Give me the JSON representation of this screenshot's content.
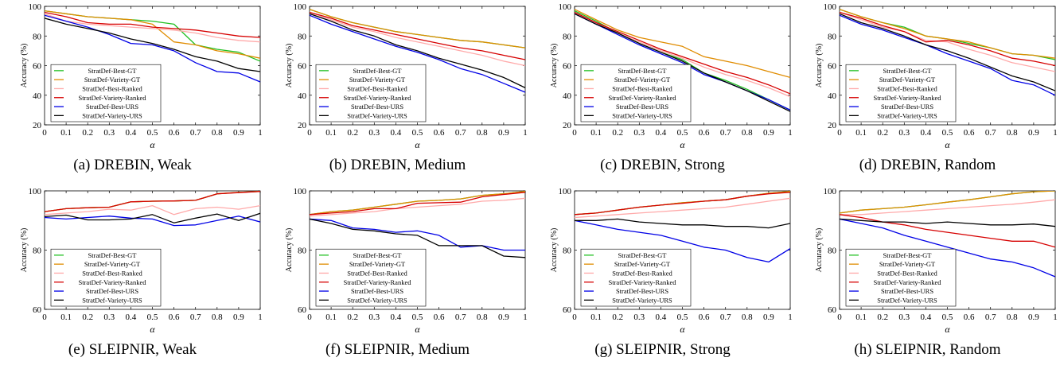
{
  "legend_labels": [
    "StratDef-Best-GT",
    "StratDef-Variety-GT",
    "StratDef-Best-Ranked",
    "StratDef-Variety-Ranked",
    "StratDef-Best-URS",
    "StratDef-Variety-URS"
  ],
  "series_colors": [
    "#22c022",
    "#e08c00",
    "#ffaaaa",
    "#d60000",
    "#0000e6",
    "#000000"
  ],
  "chart_data": [
    {
      "type": "line",
      "caption": "(a) DREBIN, Weak",
      "xlabel": "α",
      "ylabel": "Accuracy (%)",
      "xlim": [
        0,
        1
      ],
      "ylim": [
        20,
        100
      ],
      "xticks": [
        "0",
        "0.1",
        "0.2",
        "0.3",
        "0.4",
        "0.5",
        "0.6",
        "0.7",
        "0.8",
        "0.9",
        "1"
      ],
      "yticks": [
        "20",
        "40",
        "60",
        "80",
        "100"
      ],
      "x": [
        0,
        0.1,
        0.2,
        0.3,
        0.4,
        0.5,
        0.6,
        0.7,
        0.8,
        0.9,
        1
      ],
      "legend_position": "bottom-left",
      "series": [
        {
          "name": "StratDef-Best-GT",
          "values": [
            97,
            95,
            93,
            92,
            91,
            90,
            88,
            74,
            71,
            69,
            63
          ]
        },
        {
          "name": "StratDef-Variety-GT",
          "values": [
            97,
            95,
            93,
            92,
            91,
            88,
            76,
            74,
            70,
            68,
            65
          ]
        },
        {
          "name": "StratDef-Best-Ranked",
          "values": [
            95,
            90,
            88,
            87,
            86,
            85,
            84,
            82,
            79,
            77,
            76
          ]
        },
        {
          "name": "StratDef-Variety-Ranked",
          "values": [
            96,
            93,
            89,
            88,
            88,
            86,
            85,
            84,
            82,
            80,
            79
          ]
        },
        {
          "name": "StratDef-Best-URS",
          "values": [
            94,
            90,
            86,
            81,
            75,
            74,
            70,
            62,
            56,
            55,
            49
          ]
        },
        {
          "name": "StratDef-Variety-URS",
          "values": [
            92,
            88,
            85,
            82,
            78,
            75,
            71,
            66,
            63,
            58,
            56
          ]
        }
      ]
    },
    {
      "type": "line",
      "caption": "(b) DREBIN, Medium",
      "xlabel": "α",
      "ylabel": "Accuracy (%)",
      "xlim": [
        0,
        1
      ],
      "ylim": [
        20,
        100
      ],
      "xticks": [
        "0",
        "0.1",
        "0.2",
        "0.3",
        "0.4",
        "0.5",
        "0.6",
        "0.7",
        "0.8",
        "0.9",
        "1"
      ],
      "yticks": [
        "20",
        "40",
        "60",
        "80",
        "100"
      ],
      "x": [
        0,
        0.1,
        0.2,
        0.3,
        0.4,
        0.5,
        0.6,
        0.7,
        0.8,
        0.9,
        1
      ],
      "legend_position": "bottom-left",
      "series": [
        {
          "name": "StratDef-Best-GT",
          "values": [
            98,
            93,
            89,
            86,
            83,
            81,
            79,
            77,
            76,
            74,
            72
          ]
        },
        {
          "name": "StratDef-Variety-GT",
          "values": [
            98,
            93,
            89,
            86,
            83,
            81,
            79,
            77,
            76,
            74,
            72
          ]
        },
        {
          "name": "StratDef-Best-Ranked",
          "values": [
            96,
            91,
            86,
            83,
            79,
            76,
            73,
            70,
            67,
            63,
            60
          ]
        },
        {
          "name": "StratDef-Variety-Ranked",
          "values": [
            96,
            92,
            87,
            84,
            81,
            78,
            75,
            72,
            70,
            67,
            64
          ]
        },
        {
          "name": "StratDef-Best-URS",
          "values": [
            94,
            88,
            83,
            78,
            73,
            69,
            64,
            58,
            54,
            48,
            42
          ]
        },
        {
          "name": "StratDef-Variety-URS",
          "values": [
            95,
            90,
            84,
            80,
            74,
            70,
            65,
            61,
            57,
            52,
            45
          ]
        }
      ]
    },
    {
      "type": "line",
      "caption": "(c) DREBIN, Strong",
      "xlabel": "α",
      "ylabel": "Accuracy (%)",
      "xlim": [
        0,
        1
      ],
      "ylim": [
        20,
        100
      ],
      "xticks": [
        "0",
        "0.1",
        "0.2",
        "0.3",
        "0.4",
        "0.5",
        "0.6",
        "0.7",
        "0.8",
        "0.9",
        "1"
      ],
      "yticks": [
        "20",
        "40",
        "60",
        "80",
        "100"
      ],
      "x": [
        0,
        0.1,
        0.2,
        0.3,
        0.4,
        0.5,
        0.6,
        0.7,
        0.8,
        0.9,
        1
      ],
      "legend_position": "bottom-left",
      "series": [
        {
          "name": "StratDef-Best-GT",
          "values": [
            97,
            90,
            82,
            75,
            69,
            64,
            55,
            50,
            44,
            37,
            30
          ]
        },
        {
          "name": "StratDef-Variety-GT",
          "values": [
            98,
            91,
            84,
            79,
            76,
            73,
            66,
            63,
            60,
            56,
            52
          ]
        },
        {
          "name": "StratDef-Best-Ranked",
          "values": [
            96,
            89,
            82,
            76,
            70,
            65,
            59,
            54,
            50,
            45,
            39
          ]
        },
        {
          "name": "StratDef-Variety-Ranked",
          "values": [
            96,
            89,
            83,
            77,
            71,
            66,
            61,
            56,
            52,
            47,
            41
          ]
        },
        {
          "name": "StratDef-Best-URS",
          "values": [
            95,
            88,
            81,
            74,
            68,
            62,
            54,
            49,
            43,
            37,
            30
          ]
        },
        {
          "name": "StratDef-Variety-URS",
          "values": [
            95,
            88,
            82,
            75,
            69,
            63,
            55,
            49,
            43,
            36,
            29
          ]
        }
      ]
    },
    {
      "type": "line",
      "caption": "(d) DREBIN, Random",
      "xlabel": "α",
      "ylabel": "Accuracy (%)",
      "xlim": [
        0,
        1
      ],
      "ylim": [
        20,
        100
      ],
      "xticks": [
        "0",
        "0.1",
        "0.2",
        "0.3",
        "0.4",
        "0.5",
        "0.6",
        "0.7",
        "0.8",
        "0.9",
        "1"
      ],
      "yticks": [
        "20",
        "40",
        "60",
        "80",
        "100"
      ],
      "x": [
        0,
        0.1,
        0.2,
        0.3,
        0.4,
        0.5,
        0.6,
        0.7,
        0.8,
        0.9,
        1
      ],
      "legend_position": "bottom-left",
      "series": [
        {
          "name": "StratDef-Best-GT",
          "values": [
            98,
            93,
            89,
            86,
            80,
            78,
            75,
            72,
            68,
            67,
            64
          ]
        },
        {
          "name": "StratDef-Variety-GT",
          "values": [
            98,
            93,
            89,
            85,
            80,
            78,
            76,
            72,
            68,
            67,
            65
          ]
        },
        {
          "name": "StratDef-Best-Ranked",
          "values": [
            96,
            91,
            86,
            83,
            77,
            76,
            71,
            67,
            62,
            59,
            56
          ]
        },
        {
          "name": "StratDef-Variety-Ranked",
          "values": [
            96,
            92,
            87,
            83,
            76,
            77,
            74,
            70,
            65,
            63,
            60
          ]
        },
        {
          "name": "StratDef-Best-URS",
          "values": [
            94,
            88,
            84,
            79,
            74,
            68,
            63,
            58,
            50,
            47,
            40
          ]
        },
        {
          "name": "StratDef-Variety-URS",
          "values": [
            95,
            89,
            85,
            80,
            74,
            70,
            65,
            59,
            53,
            49,
            43
          ]
        }
      ]
    },
    {
      "type": "line",
      "caption": "(e) SLEIPNIR, Weak",
      "xlabel": "α",
      "ylabel": "Accuracy (%)",
      "xlim": [
        0,
        1
      ],
      "ylim": [
        60,
        100
      ],
      "xticks": [
        "0",
        "0.1",
        "0.2",
        "0.3",
        "0.4",
        "0.5",
        "0.6",
        "0.7",
        "0.8",
        "0.9",
        "1"
      ],
      "yticks": [
        "60",
        "80",
        "100"
      ],
      "x": [
        0,
        0.1,
        0.2,
        0.3,
        0.4,
        0.5,
        0.6,
        0.7,
        0.8,
        0.9,
        1
      ],
      "legend_position": "bottom-left",
      "series": [
        {
          "name": "StratDef-Best-GT",
          "values": [
            93,
            94,
            94.3,
            94.5,
            96.3,
            96.5,
            96.6,
            96.8,
            99,
            99.5,
            99.8
          ]
        },
        {
          "name": "StratDef-Variety-GT",
          "values": [
            93,
            94,
            94.3,
            94.5,
            96.3,
            96.5,
            96.6,
            96.8,
            99,
            99.5,
            99.8
          ]
        },
        {
          "name": "StratDef-Best-Ranked",
          "values": [
            92,
            92.5,
            93,
            93.8,
            93.5,
            95,
            92,
            94,
            94.5,
            93.8,
            95
          ]
        },
        {
          "name": "StratDef-Variety-Ranked",
          "values": [
            93,
            94,
            94.3,
            94.5,
            96.3,
            96.5,
            96.6,
            96.8,
            99,
            99.4,
            99.8
          ]
        },
        {
          "name": "StratDef-Best-URS",
          "values": [
            91,
            90.5,
            91,
            91.5,
            90.8,
            90.5,
            88.3,
            88.5,
            90,
            91.5,
            89.5
          ]
        },
        {
          "name": "StratDef-Variety-URS",
          "values": [
            91.3,
            91.8,
            90.2,
            90.2,
            90.5,
            92,
            89.2,
            90.8,
            92.2,
            90,
            92.4
          ]
        }
      ]
    },
    {
      "type": "line",
      "caption": "(f) SLEIPNIR, Medium",
      "xlabel": "α",
      "ylabel": "Accuracy (%)",
      "xlim": [
        0,
        1
      ],
      "ylim": [
        60,
        100
      ],
      "xticks": [
        "0",
        "0.1",
        "0.2",
        "0.3",
        "0.4",
        "0.5",
        "0.6",
        "0.7",
        "0.8",
        "0.9",
        "1"
      ],
      "yticks": [
        "60",
        "80",
        "100"
      ],
      "x": [
        0,
        0.1,
        0.2,
        0.3,
        0.4,
        0.5,
        0.6,
        0.7,
        0.8,
        0.9,
        1
      ],
      "legend_position": "bottom-left",
      "series": [
        {
          "name": "StratDef-Best-GT",
          "values": [
            92,
            93,
            93.5,
            94.5,
            95.5,
            96.5,
            96.8,
            97.3,
            98.5,
            99,
            99.8
          ]
        },
        {
          "name": "StratDef-Variety-GT",
          "values": [
            92,
            93,
            93.5,
            94.5,
            95.5,
            96.5,
            96.8,
            97.3,
            98.5,
            99,
            99.8
          ]
        },
        {
          "name": "StratDef-Best-Ranked",
          "values": [
            91.5,
            92,
            92.5,
            93,
            94,
            94.5,
            95,
            95.5,
            96.5,
            96.8,
            97.5
          ]
        },
        {
          "name": "StratDef-Variety-Ranked",
          "values": [
            92,
            92.5,
            93,
            94,
            94,
            95.8,
            96,
            96.2,
            98,
            98.8,
            99.5
          ]
        },
        {
          "name": "StratDef-Best-URS",
          "values": [
            90.5,
            90,
            87.5,
            87,
            86,
            86.5,
            85,
            81,
            81.5,
            80,
            80
          ]
        },
        {
          "name": "StratDef-Variety-URS",
          "values": [
            90.5,
            89,
            87,
            86.5,
            85.5,
            85,
            81.5,
            81.5,
            81.5,
            78,
            77.5
          ]
        }
      ]
    },
    {
      "type": "line",
      "caption": "(g) SLEIPNIR, Strong",
      "xlabel": "α",
      "ylabel": "Accuracy (%)",
      "xlim": [
        0,
        1
      ],
      "ylim": [
        60,
        100
      ],
      "xticks": [
        "0",
        "0.1",
        "0.2",
        "0.3",
        "0.4",
        "0.5",
        "0.6",
        "0.7",
        "0.8",
        "0.9",
        "1"
      ],
      "yticks": [
        "60",
        "80",
        "100"
      ],
      "x": [
        0,
        0.1,
        0.2,
        0.3,
        0.4,
        0.5,
        0.6,
        0.7,
        0.8,
        0.9,
        1
      ],
      "legend_position": "bottom-left",
      "series": [
        {
          "name": "StratDef-Best-GT",
          "values": [
            92,
            92.5,
            93.5,
            94.5,
            95.2,
            96,
            96.5,
            97,
            98.2,
            99.2,
            99.8
          ]
        },
        {
          "name": "StratDef-Variety-GT",
          "values": [
            92,
            92.5,
            93.5,
            94.5,
            95.2,
            96,
            96.5,
            97,
            98.2,
            99.2,
            99.8
          ]
        },
        {
          "name": "StratDef-Best-Ranked",
          "values": [
            91,
            91.5,
            92,
            92.5,
            93,
            93.5,
            94,
            94.5,
            95.5,
            96.5,
            97.5
          ]
        },
        {
          "name": "StratDef-Variety-Ranked",
          "values": [
            92,
            92.5,
            93.5,
            94.5,
            95.2,
            95.8,
            96.5,
            97,
            98.2,
            99,
            99.5
          ]
        },
        {
          "name": "StratDef-Best-URS",
          "values": [
            90,
            88.5,
            87,
            86,
            85,
            83,
            81,
            80,
            77.5,
            76,
            80.5
          ]
        },
        {
          "name": "StratDef-Variety-URS",
          "values": [
            90,
            90,
            90.5,
            89.5,
            89,
            88.5,
            88.5,
            88,
            88,
            87.5,
            89
          ]
        }
      ]
    },
    {
      "type": "line",
      "caption": "(h) SLEIPNIR, Random",
      "xlabel": "α",
      "ylabel": "Accuracy (%)",
      "xlim": [
        0,
        1
      ],
      "ylim": [
        60,
        100
      ],
      "xticks": [
        "0",
        "0.1",
        "0.2",
        "0.3",
        "0.4",
        "0.5",
        "0.6",
        "0.7",
        "0.8",
        "0.9",
        "1"
      ],
      "yticks": [
        "60",
        "80",
        "100"
      ],
      "x": [
        0,
        0.1,
        0.2,
        0.3,
        0.4,
        0.5,
        0.6,
        0.7,
        0.8,
        0.9,
        1
      ],
      "legend_position": "bottom-left",
      "series": [
        {
          "name": "StratDef-Best-GT",
          "values": [
            92.5,
            93.5,
            94,
            94.5,
            95.3,
            96.2,
            97,
            98,
            99,
            99.7,
            100
          ]
        },
        {
          "name": "StratDef-Variety-GT",
          "values": [
            92.5,
            93.5,
            94,
            94.5,
            95.3,
            96.2,
            97,
            98,
            99,
            99.7,
            100
          ]
        },
        {
          "name": "StratDef-Best-Ranked",
          "values": [
            92,
            92,
            92.5,
            93,
            93.5,
            94,
            94.5,
            95,
            95.5,
            96.2,
            97
          ]
        },
        {
          "name": "StratDef-Variety-Ranked",
          "values": [
            92,
            91,
            89.5,
            88.5,
            87,
            86,
            85,
            84,
            83,
            83,
            81
          ]
        },
        {
          "name": "StratDef-Best-URS",
          "values": [
            90.5,
            89,
            87.5,
            85,
            83,
            81,
            79,
            77,
            76,
            74,
            71
          ]
        },
        {
          "name": "StratDef-Variety-URS",
          "values": [
            90.5,
            90,
            89.5,
            89.5,
            89,
            89.5,
            89,
            88.5,
            88.5,
            88.8,
            88
          ]
        }
      ]
    }
  ]
}
